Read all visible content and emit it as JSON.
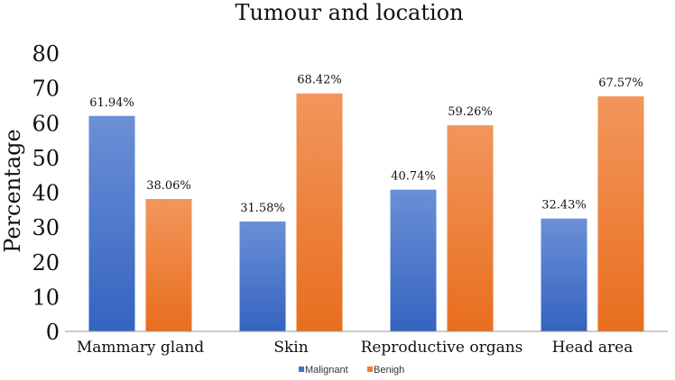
{
  "chart_data": {
    "type": "bar",
    "title": "Tumour and location",
    "xlabel": "",
    "ylabel": "Percentage",
    "ylim": [
      0,
      80
    ],
    "yticks": [
      "0",
      "10",
      "20",
      "30",
      "40",
      "50",
      "60",
      "70",
      "80"
    ],
    "categories": [
      "Mammary gland",
      "Skin",
      "Reproductive organs",
      "Head area"
    ],
    "series": [
      {
        "name": "Malignant",
        "values": [
          61.94,
          31.58,
          40.74,
          32.43
        ],
        "labels": [
          "61.94%",
          "31.58%",
          "40.74%",
          "32.43%"
        ]
      },
      {
        "name": "Benigh",
        "values": [
          38.06,
          68.42,
          59.26,
          67.57
        ],
        "labels": [
          "38.06%",
          "68.42%",
          "59.26%",
          "67.57%"
        ]
      }
    ],
    "grid": false,
    "legend_position": "bottom",
    "colors": {
      "Malignant": "#4472C4",
      "Benigh": "#ED7D31"
    }
  }
}
